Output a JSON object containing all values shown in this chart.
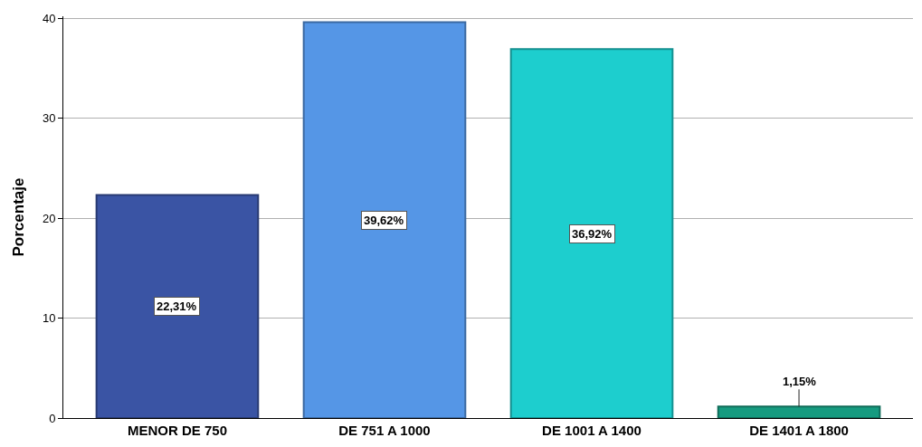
{
  "chart_data": {
    "type": "bar",
    "ylabel": "Porcentaje",
    "categories": [
      "MENOR DE 750",
      "DE 751 A 1000",
      "DE 1001 A 1400",
      "DE 1401 A 1800"
    ],
    "values": [
      22.31,
      39.62,
      36.92,
      1.15
    ],
    "colors": [
      "#3a54a4",
      "#5596e6",
      "#1dcece",
      "#169b80"
    ],
    "value_labels": [
      "22,31%",
      "39,62%",
      "36,92%",
      "1,15%"
    ],
    "ylim": [
      0,
      40.2
    ],
    "yticks": [
      0,
      10,
      20,
      30,
      40
    ],
    "grid": "y",
    "legend": false
  }
}
